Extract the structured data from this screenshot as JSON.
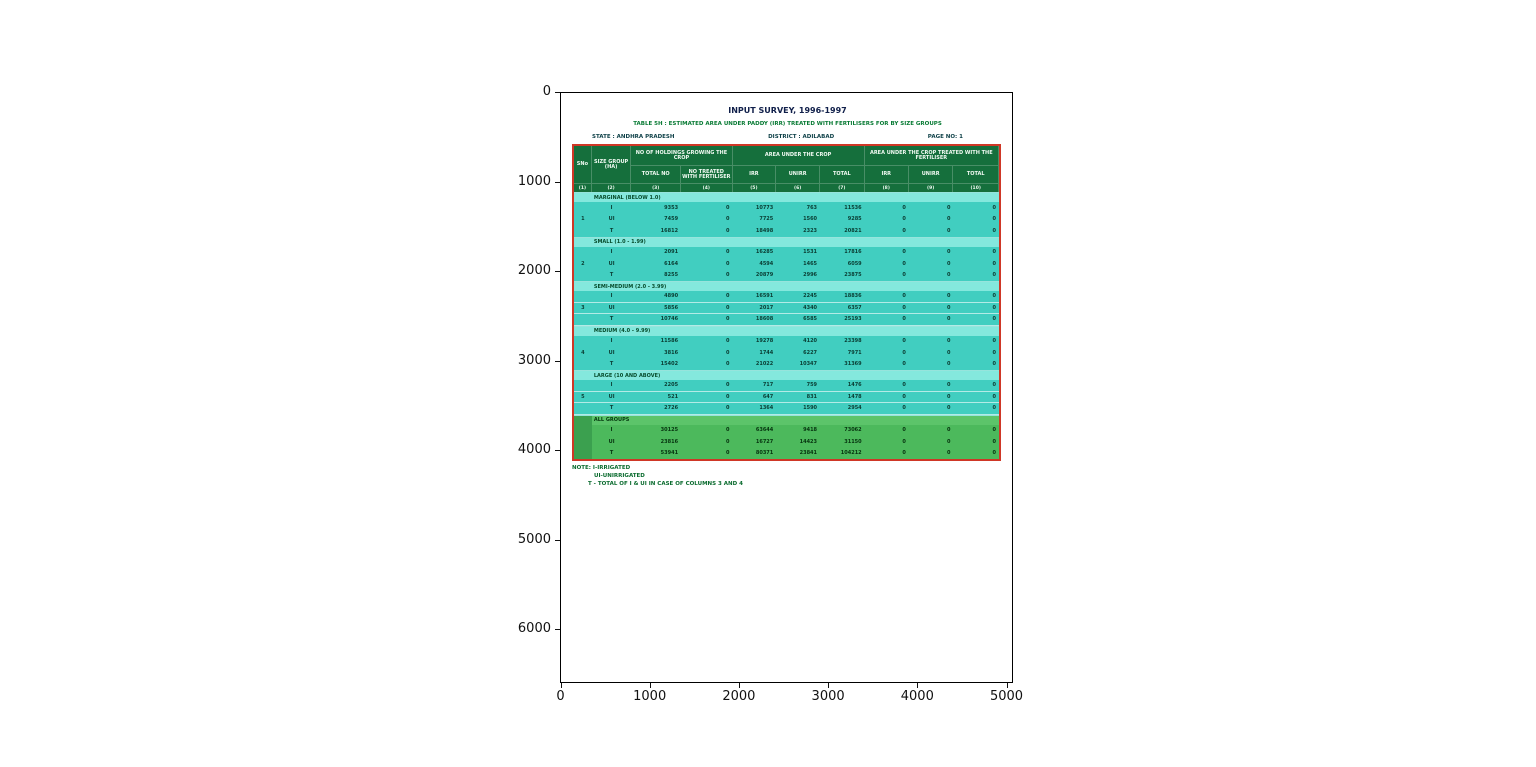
{
  "figure": {
    "x_ticks": [
      "0",
      "1000",
      "2000",
      "3000",
      "4000",
      "5000"
    ],
    "y_ticks": [
      "0",
      "1000",
      "2000",
      "3000",
      "4000",
      "5000",
      "6000"
    ]
  },
  "document": {
    "title": "INPUT SURVEY, 1996-1997",
    "subtitle": "TABLE 5H : ESTIMATED AREA UNDER PADDY (IRR) TREATED WITH FERTILISERS FOR BY SIZE GROUPS",
    "state_label": "STATE : ANDHRA PRADESH",
    "district_label": "DISTRICT : ADILABAD",
    "page_label": "PAGE NO: 1",
    "notes": [
      "NOTE: I-IRRIGATED",
      "UI-UNIRRIGATED",
      "T - TOTAL OF I & UI IN CASE OF COLUMNS 3 AND 4"
    ]
  },
  "table": {
    "header": {
      "sno": "SNo",
      "size_group": "SIZE GROUP (HA)",
      "holdings_block": "NO OF HOLDINGS GROWING THE CROP",
      "holdings_cols": [
        "TOTAL NO",
        "NO TREATED WITH FERTILISER"
      ],
      "area_block": "AREA UNDER THE CROP",
      "area_cols": [
        "IRR",
        "UNIRR",
        "TOTAL"
      ],
      "treated_block": "AREA UNDER THE CROP TREATED WITH THE FERTILISER",
      "treated_cols": [
        "IRR",
        "UNIRR",
        "TOTAL"
      ],
      "col_numbers": [
        "(1)",
        "(2)",
        "(3)",
        "(4)",
        "(5)",
        "(6)",
        "(7)",
        "(8)",
        "(9)",
        "(10)"
      ]
    },
    "groups": [
      {
        "sno": "1",
        "label": "MARGINAL (BELOW 1.0)",
        "all": false,
        "rows": [
          {
            "type": "I",
            "values": [
              "9353",
              "0",
              "10773",
              "763",
              "11536",
              "0",
              "0",
              "0"
            ]
          },
          {
            "type": "UI",
            "values": [
              "7459",
              "0",
              "7725",
              "1560",
              "9285",
              "0",
              "0",
              "0"
            ]
          },
          {
            "type": "T",
            "values": [
              "16812",
              "0",
              "18498",
              "2323",
              "20821",
              "0",
              "0",
              "0"
            ]
          }
        ]
      },
      {
        "sno": "2",
        "label": "SMALL (1.0 - 1.99)",
        "all": false,
        "rows": [
          {
            "type": "I",
            "values": [
              "2091",
              "0",
              "16285",
              "1531",
              "17816",
              "0",
              "0",
              "0"
            ]
          },
          {
            "type": "UI",
            "values": [
              "6164",
              "0",
              "4594",
              "1465",
              "6059",
              "0",
              "0",
              "0"
            ]
          },
          {
            "type": "T",
            "values": [
              "8255",
              "0",
              "20879",
              "2996",
              "23875",
              "0",
              "0",
              "0"
            ]
          }
        ]
      },
      {
        "sno": "3",
        "label": "SEMI-MEDIUM (2.0 - 3.99)",
        "all": false,
        "rows": [
          {
            "type": "I",
            "values": [
              "4890",
              "0",
              "16591",
              "2245",
              "18836",
              "0",
              "0",
              "0"
            ]
          },
          {
            "type": "UI",
            "values": [
              "5856",
              "0",
              "2017",
              "4340",
              "6357",
              "0",
              "0",
              "0"
            ]
          },
          {
            "type": "T",
            "values": [
              "10746",
              "0",
              "18608",
              "6585",
              "25193",
              "0",
              "0",
              "0"
            ]
          }
        ]
      },
      {
        "sno": "4",
        "label": "MEDIUM (4.0 - 9.99)",
        "all": false,
        "rows": [
          {
            "type": "I",
            "values": [
              "11586",
              "0",
              "19278",
              "4120",
              "23398",
              "0",
              "0",
              "0"
            ]
          },
          {
            "type": "UI",
            "values": [
              "3816",
              "0",
              "1744",
              "6227",
              "7971",
              "0",
              "0",
              "0"
            ]
          },
          {
            "type": "T",
            "values": [
              "15402",
              "0",
              "21022",
              "10347",
              "31369",
              "0",
              "0",
              "0"
            ]
          }
        ]
      },
      {
        "sno": "5",
        "label": "LARGE (10 AND ABOVE)",
        "all": false,
        "rows": [
          {
            "type": "I",
            "values": [
              "2205",
              "0",
              "717",
              "759",
              "1476",
              "0",
              "0",
              "0"
            ]
          },
          {
            "type": "UI",
            "values": [
              "521",
              "0",
              "647",
              "831",
              "1478",
              "0",
              "0",
              "0"
            ]
          },
          {
            "type": "T",
            "values": [
              "2726",
              "0",
              "1364",
              "1590",
              "2954",
              "0",
              "0",
              "0"
            ]
          }
        ]
      },
      {
        "sno": "",
        "label": "ALL GROUPS",
        "all": true,
        "rows": [
          {
            "type": "I",
            "values": [
              "30125",
              "0",
              "63644",
              "9418",
              "73062",
              "0",
              "0",
              "0"
            ]
          },
          {
            "type": "UI",
            "values": [
              "23816",
              "0",
              "16727",
              "14423",
              "31150",
              "0",
              "0",
              "0"
            ]
          },
          {
            "type": "T",
            "values": [
              "53941",
              "0",
              "80371",
              "23841",
              "104212",
              "0",
              "0",
              "0"
            ]
          }
        ]
      }
    ]
  }
}
